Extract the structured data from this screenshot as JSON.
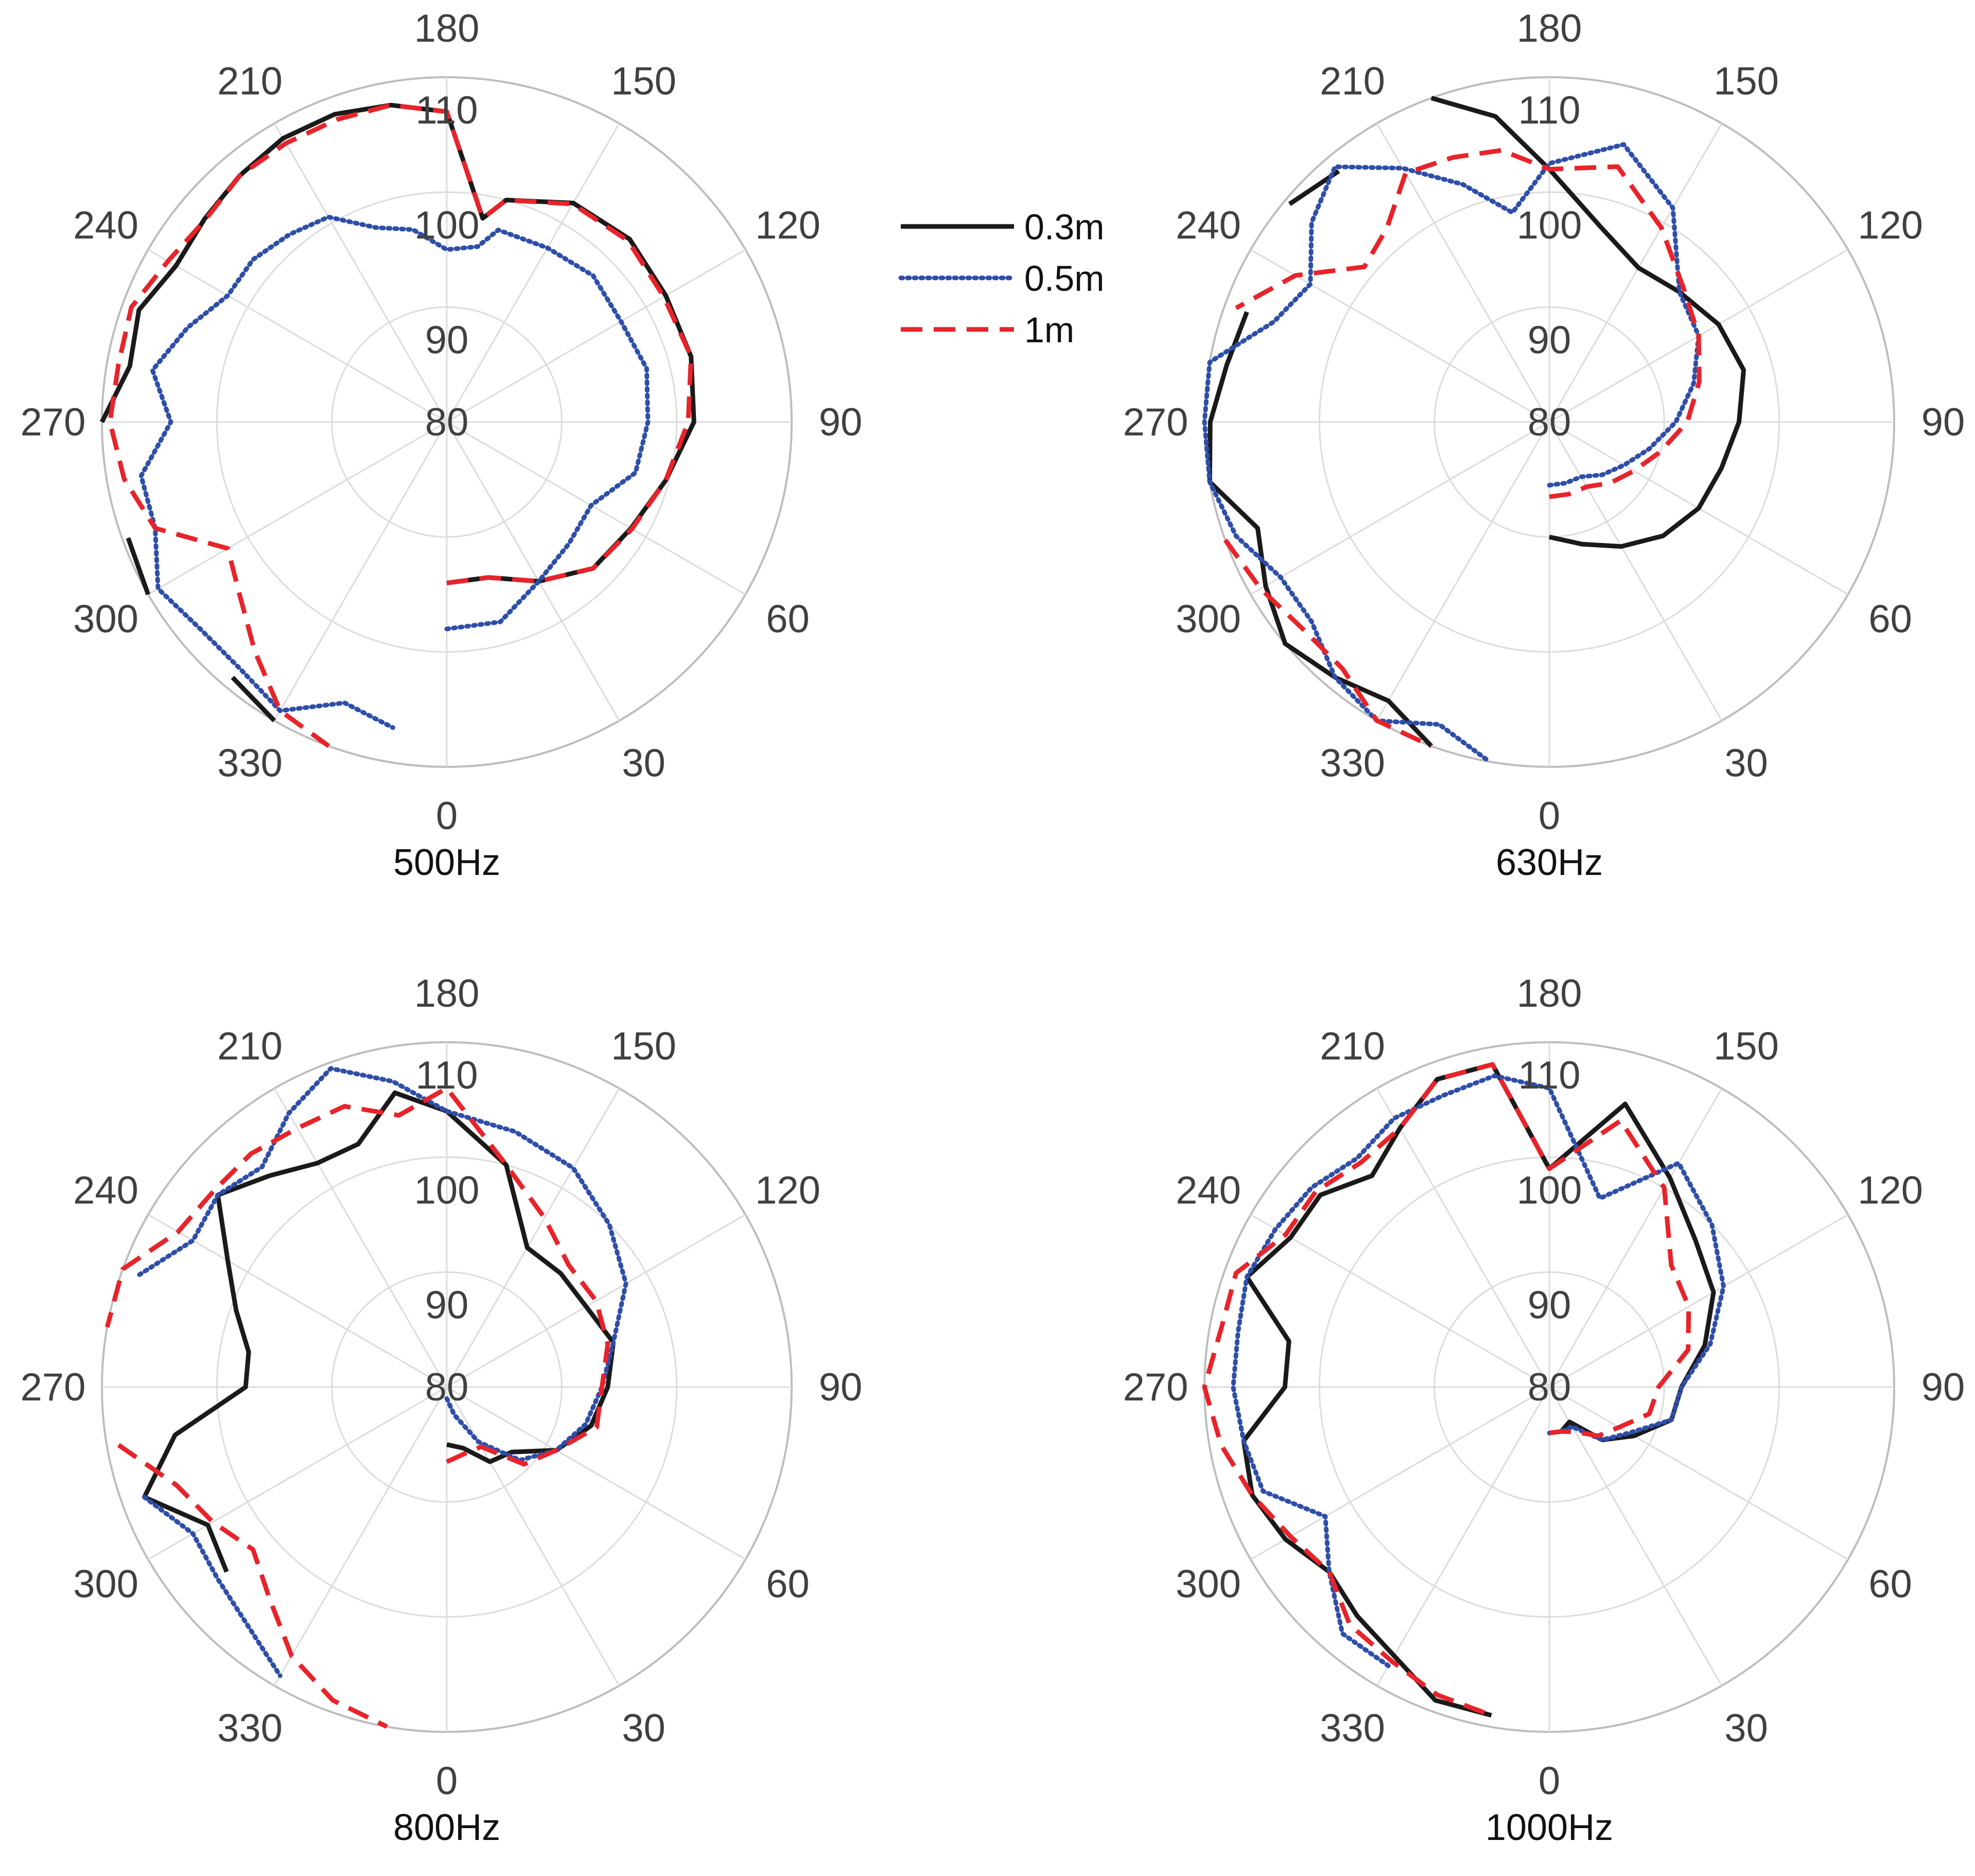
{
  "legend": {
    "items": [
      {
        "label": "0.3m",
        "color": "#1a1a1a",
        "dash": "solid"
      },
      {
        "label": "0.5m",
        "color": "#2e4ea8",
        "dash": "dotted"
      },
      {
        "label": "1m",
        "color": "#e8232a",
        "dash": "dashed"
      }
    ]
  },
  "chart_data": [
    {
      "type": "polar-line",
      "title": "500Hz",
      "angle_ticks": [
        0,
        30,
        60,
        90,
        120,
        150,
        180,
        210,
        240,
        270,
        300,
        330
      ],
      "radial_ticks": [
        80,
        90,
        100,
        110
      ],
      "rlim": [
        80,
        110
      ],
      "series": [
        {
          "name": "0.3m",
          "theta": [
            0,
            15,
            30,
            45,
            60,
            75,
            90,
            105,
            120,
            135,
            150,
            165,
            170,
            180,
            190,
            200,
            210,
            220,
            230,
            240,
            250,
            260,
            270,
            280,
            290,
            300,
            310,
            320,
            330
          ],
          "r": [
            94,
            94,
            96,
            98,
            98.5,
            99.7,
            101.5,
            102,
            102,
            102.5,
            102,
            100,
            98,
            107,
            108,
            108.5,
            108.5,
            108,
            107.5,
            107.2,
            108.5,
            108,
            110,
            null,
            109.5,
            110,
            null,
            109,
            110
          ]
        },
        {
          "name": "0.5m",
          "theta": [
            0,
            15,
            30,
            45,
            60,
            75,
            90,
            105,
            120,
            135,
            150,
            165,
            170,
            180,
            190,
            200,
            210,
            220,
            230,
            240,
            250,
            260,
            270,
            280,
            290,
            300,
            310,
            320,
            330,
            340,
            350
          ],
          "r": [
            98,
            98,
            96,
            95,
            94.5,
            97,
            97.5,
            98,
            97.5,
            98,
            97.5,
            97.3,
            95.5,
            95,
            97,
            98,
            100.6,
            101.3,
            102,
            102,
            104,
            106,
            104,
            107,
            107,
            109,
            108,
            108,
            109,
            106,
            107
          ]
        },
        {
          "name": "1m",
          "theta": [
            0,
            15,
            30,
            45,
            60,
            75,
            90,
            105,
            120,
            135,
            150,
            165,
            170,
            180,
            190,
            200,
            210,
            220,
            230,
            240,
            250,
            260,
            270,
            280,
            290,
            300,
            310,
            320,
            330,
            340
          ],
          "r": [
            94,
            94,
            96,
            98,
            98.6,
            99.7,
            101,
            102,
            101.8,
            102.3,
            101.9,
            100,
            98,
            107,
            108,
            108,
            108,
            108,
            107.4,
            108,
            109.2,
            109,
            109.3,
            108.5,
            107,
            102,
            103.5,
            106,
            109,
            110
          ]
        }
      ]
    },
    {
      "type": "polar-line",
      "title": "630Hz",
      "angle_ticks": [
        0,
        30,
        60,
        90,
        120,
        150,
        180,
        210,
        240,
        270,
        300,
        330
      ],
      "radial_ticks": [
        80,
        90,
        100,
        110
      ],
      "rlim": [
        80,
        110
      ],
      "series": [
        {
          "name": "0.3m",
          "theta": [
            0,
            15,
            30,
            45,
            60,
            75,
            90,
            105,
            120,
            135,
            150,
            165,
            180,
            190,
            200,
            210,
            220,
            230,
            240,
            250,
            260,
            270,
            280,
            290,
            300,
            310,
            320,
            330,
            340
          ],
          "r": [
            90,
            91,
            92.5,
            94,
            95,
            95.5,
            96.5,
            97.5,
            97,
            96,
            95.5,
            97.5,
            102,
            107,
            110,
            null,
            108.5,
            109.5,
            null,
            108,
            108.5,
            109.5,
            110,
            107,
            108.5,
            110,
            109,
            108,
            110
          ]
        },
        {
          "name": "0.5m",
          "theta": [
            0,
            15,
            30,
            45,
            60,
            75,
            90,
            105,
            120,
            135,
            150,
            165,
            180,
            190,
            200,
            210,
            220,
            230,
            240,
            250,
            260,
            270,
            280,
            290,
            300,
            310,
            320,
            330,
            340,
            350
          ],
          "r": [
            85.5,
            85.5,
            85.5,
            86.5,
            87.5,
            89,
            91,
            93,
            95,
            96,
            101.5,
            105,
            102.5,
            98.5,
            102,
            105.5,
            109,
            107,
            104,
            105.5,
            110,
            110,
            110,
            109,
            107,
            107,
            109,
            110,
            108,
            110
          ]
        },
        {
          "name": "1m",
          "theta": [
            0,
            15,
            30,
            45,
            60,
            75,
            90,
            105,
            120,
            135,
            150,
            165,
            180,
            190,
            200,
            210,
            220,
            230,
            240,
            250,
            260,
            270,
            280,
            290,
            300,
            310,
            320,
            330,
            340
          ],
          "r": [
            86.5,
            86.5,
            86.5,
            87.5,
            88.5,
            90,
            92,
            93.5,
            95,
            96.5,
            99.5,
            103,
            102,
            104,
            104.5,
            105,
            102,
            101,
            105.5,
            109,
            null,
            null,
            null,
            110,
            109,
            108,
            108,
            110,
            110
          ]
        }
      ]
    },
    {
      "type": "polar-line",
      "title": "800Hz",
      "angle_ticks": [
        0,
        30,
        60,
        90,
        120,
        150,
        180,
        210,
        240,
        270,
        300,
        330
      ],
      "radial_ticks": [
        80,
        90,
        100,
        110
      ],
      "rlim": [
        80,
        110
      ],
      "series": [
        {
          "name": "0.3m",
          "theta": [
            0,
            15,
            30,
            45,
            60,
            75,
            90,
            105,
            120,
            135,
            150,
            165,
            180,
            190,
            200,
            210,
            220,
            230,
            240,
            250,
            260,
            270,
            280,
            290,
            300,
            310,
            320
          ],
          "r": [
            85,
            85.5,
            87.5,
            88,
            91,
            93,
            94,
            95,
            94,
            94,
            94,
            100,
            104,
            106,
            102.5,
            102.5,
            104,
            106,
            102,
            99.5,
            97.5,
            97.5,
            104,
            108,
            104,
            105,
            null
          ]
        },
        {
          "name": "0.5m",
          "theta": [
            0,
            15,
            30,
            45,
            60,
            75,
            90,
            105,
            120,
            135,
            150,
            165,
            180,
            190,
            200,
            210,
            220,
            230,
            240,
            250,
            260,
            270,
            280,
            290,
            300,
            310,
            320,
            330,
            340
          ],
          "r": [
            81,
            82.5,
            85.5,
            89,
            91,
            92.5,
            93.5,
            95,
            98,
            100,
            102,
            103,
            104,
            107,
            109.5,
            107.5,
            105,
            106,
            105.5,
            108.5,
            null,
            null,
            null,
            108,
            105.5,
            106,
            107,
            109,
            null
          ]
        },
        {
          "name": "1m",
          "theta": [
            0,
            15,
            30,
            45,
            60,
            75,
            90,
            105,
            120,
            135,
            150,
            165,
            180,
            190,
            200,
            210,
            220,
            230,
            240,
            250,
            260,
            270,
            280,
            290,
            300,
            310,
            320,
            330,
            340,
            350
          ],
          "r": [
            86.5,
            86,
            86,
            89.5,
            91,
            93.5,
            93.5,
            94.5,
            95,
            95,
            97,
            100,
            106,
            104,
            106,
            106,
            106.5,
            106.5,
            107,
            110,
            110,
            null,
            109,
            105,
            103.5,
            102,
            104,
            107,
            109,
            110
          ]
        }
      ]
    },
    {
      "type": "polar-line",
      "title": "1000Hz",
      "angle_ticks": [
        0,
        30,
        60,
        90,
        120,
        150,
        180,
        210,
        240,
        270,
        300,
        330
      ],
      "radial_ticks": [
        80,
        90,
        100,
        110
      ],
      "rlim": [
        80,
        110
      ],
      "series": [
        {
          "name": "0.3m",
          "theta": [
            0,
            15,
            30,
            45,
            60,
            75,
            90,
            105,
            120,
            135,
            150,
            165,
            180,
            190,
            200,
            210,
            220,
            230,
            240,
            250,
            260,
            270,
            280,
            290,
            300,
            310,
            320,
            330,
            340,
            350
          ],
          "r": [
            84,
            84,
            83.5,
            86.5,
            88.5,
            91,
            91.5,
            94,
            96.5,
            98,
            101,
            105.5,
            99,
            108.5,
            108.5,
            106,
            104,
            106,
            106,
            108,
            103,
            103,
            107,
            107.5,
            106.5,
            105,
            106,
            107,
            109,
            109
          ]
        },
        {
          "name": "0.5m",
          "theta": [
            0,
            15,
            30,
            45,
            60,
            75,
            90,
            105,
            120,
            135,
            150,
            165,
            180,
            190,
            200,
            210,
            220,
            230,
            240,
            250,
            260,
            270,
            280,
            290,
            300,
            310,
            320,
            330,
            340
          ],
          "r": [
            84,
            84,
            84,
            86.5,
            88,
            91,
            91.5,
            94.5,
            97.5,
            100,
            102.5,
            97,
            106,
            107.5,
            107,
            107,
            106,
            107,
            107.5,
            108,
            107.5,
            107.5,
            107,
            106.5,
            102.5,
            105,
            108,
            108,
            null
          ]
        },
        {
          "name": "1m",
          "theta": [
            0,
            15,
            30,
            45,
            60,
            75,
            90,
            105,
            120,
            135,
            150,
            165,
            180,
            190,
            200,
            210,
            220,
            230,
            240,
            250,
            260,
            270,
            280,
            290,
            300,
            310,
            320,
            330,
            340,
            350
          ],
          "r": [
            84,
            84,
            84.5,
            86,
            87,
            89,
            89.5,
            92.5,
            94,
            95,
            100,
            104,
            99,
            108.5,
            108.5,
            106,
            105.5,
            106.5,
            106.5,
            109,
            109,
            110,
            109,
            107.5,
            106,
            105,
            107,
            107.5,
            108.5,
            109
          ]
        }
      ]
    }
  ]
}
